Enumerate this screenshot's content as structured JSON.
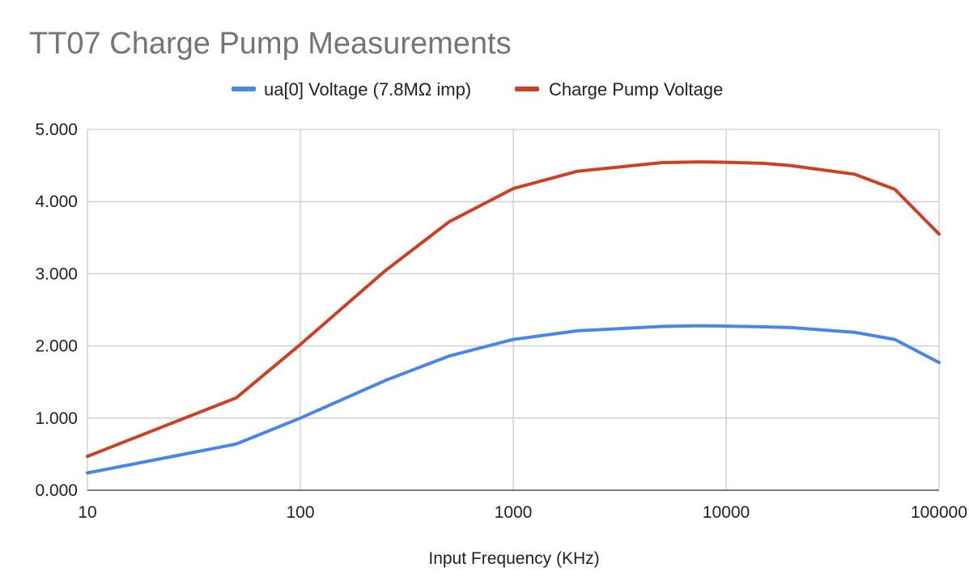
{
  "chart_data": {
    "type": "line",
    "title": "TT07 Charge Pump Measurements",
    "xlabel": "Input Frequency (KHz)",
    "ylabel": "",
    "x_scale": "log",
    "xlim": [
      10,
      100000
    ],
    "ylim": [
      0,
      5
    ],
    "x_ticks": [
      "10",
      "100",
      "1000",
      "10000",
      "100000"
    ],
    "y_ticks": [
      "0.000",
      "1.000",
      "2.000",
      "3.000",
      "4.000",
      "5.000"
    ],
    "grid": true,
    "legend_position": "top",
    "x": [
      10,
      50,
      100,
      250,
      500,
      1000,
      2000,
      5000,
      7500,
      10000,
      15000,
      20000,
      40000,
      62000,
      100000
    ],
    "series": [
      {
        "name": "ua[0] Voltage (7.8MΩ imp)",
        "color": "#4a86e8",
        "values": [
          0.24,
          0.64,
          1.0,
          1.52,
          1.86,
          2.09,
          2.21,
          2.27,
          2.28,
          2.275,
          2.265,
          2.255,
          2.19,
          2.09,
          1.77
        ]
      },
      {
        "name": "Charge Pump Voltage",
        "color": "#cc4125",
        "values": [
          0.47,
          1.28,
          2.02,
          3.04,
          3.72,
          4.18,
          4.42,
          4.54,
          4.55,
          4.545,
          4.53,
          4.5,
          4.38,
          4.17,
          3.55
        ]
      }
    ]
  }
}
